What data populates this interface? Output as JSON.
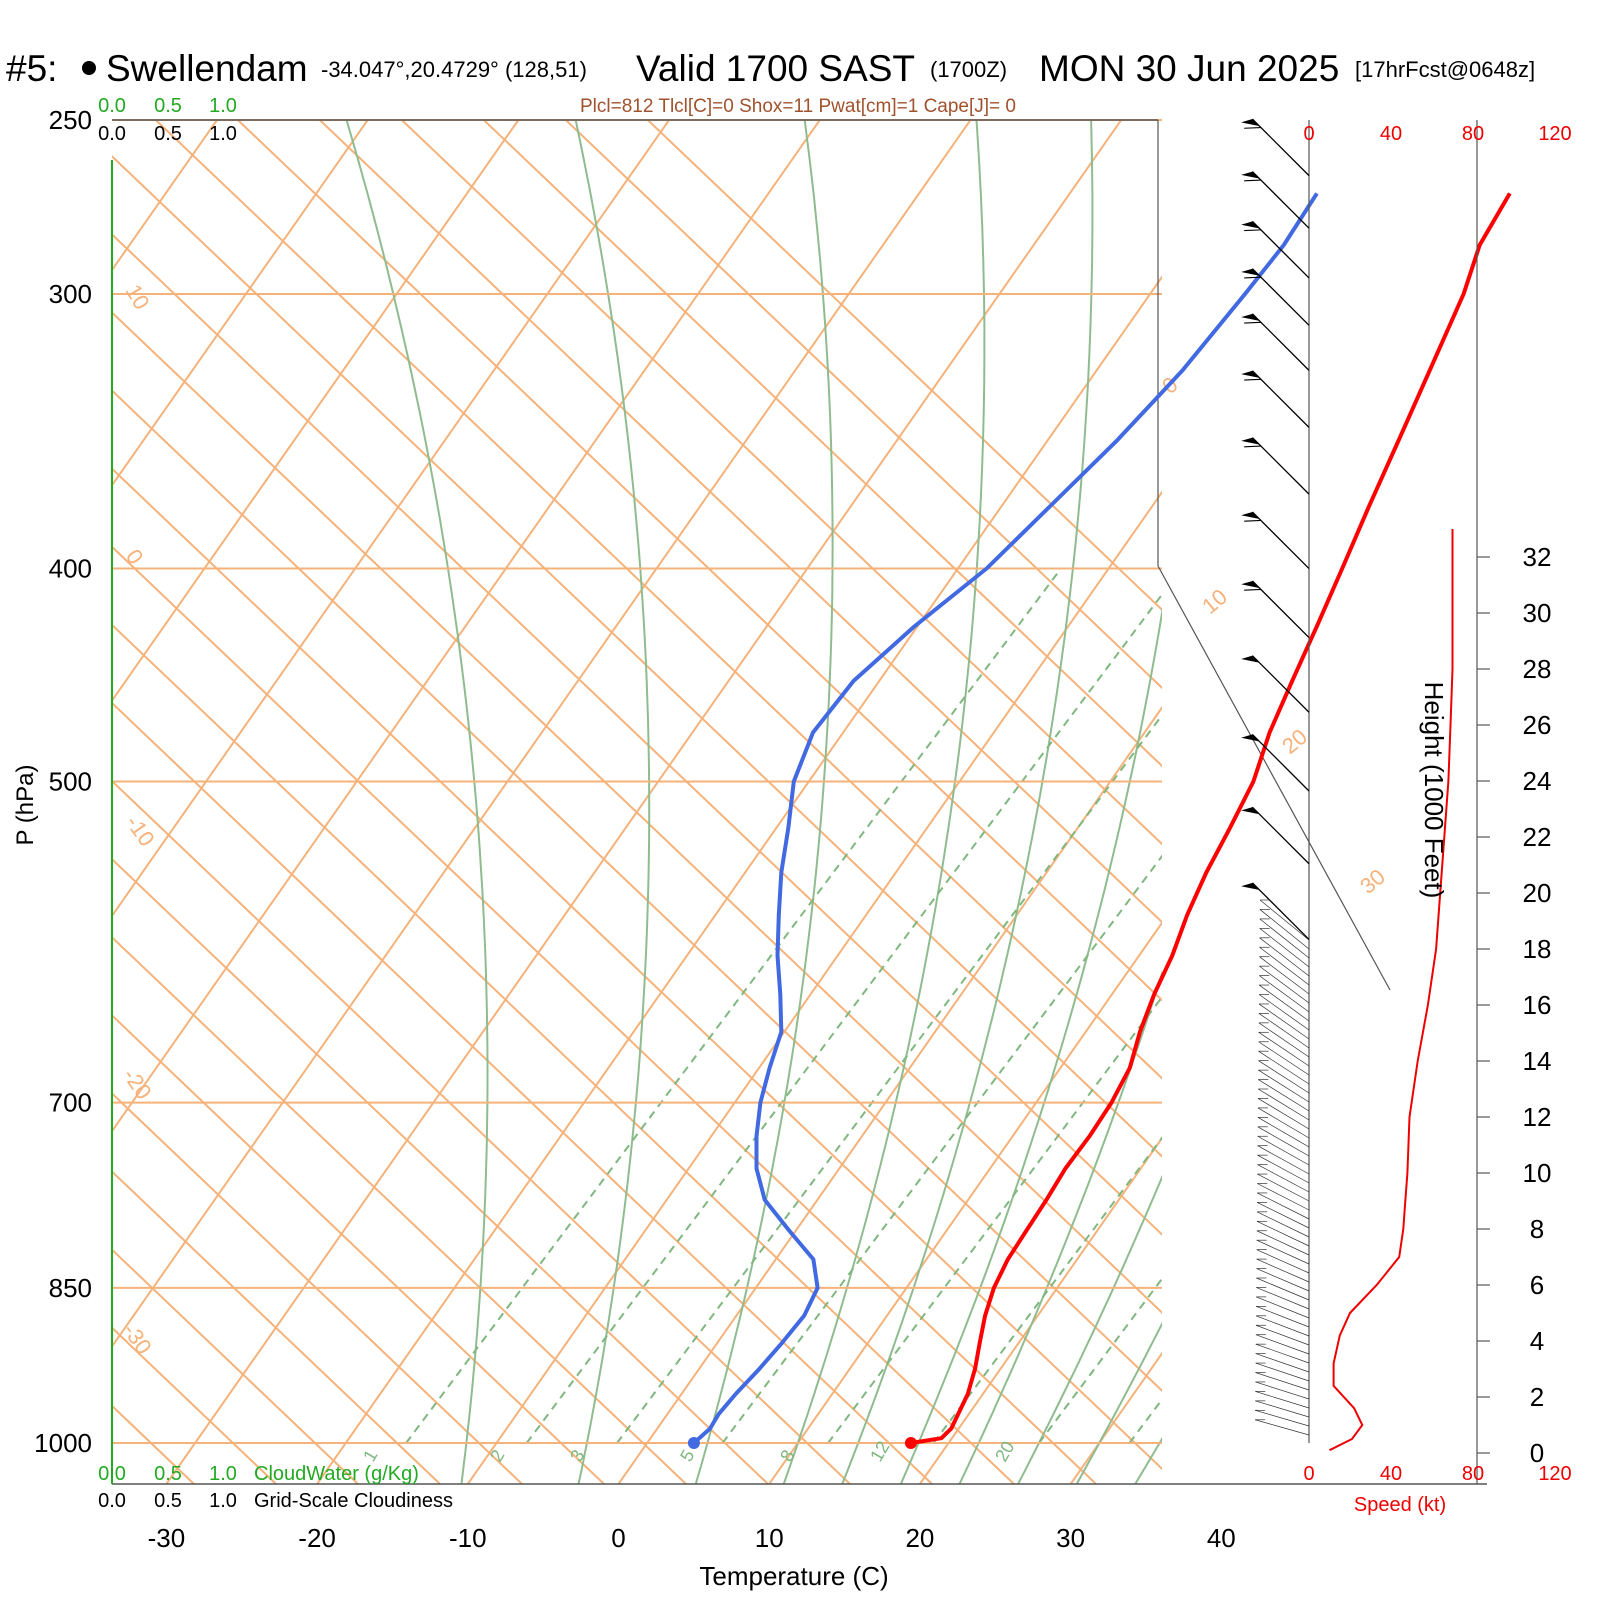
{
  "header": {
    "station_id": "#5:",
    "station_name": "Swellendam",
    "coords": "-34.047°,20.4729° (128,51)",
    "valid_label": "Valid 1700 SAST",
    "zulu": "(1700Z)",
    "date": "MON 30 Jun 2025",
    "forecast": "[17hrFcst@0648z]"
  },
  "params_line": "Plcl=812 Tlcl[C]=0 Shox=11 Pwat[cm]=1 Cape[J]= 0",
  "cloud_scale": {
    "green_ticks": [
      "0.0",
      "0.5",
      "1.0"
    ],
    "black_ticks": [
      "0.0",
      "0.5",
      "1.0"
    ],
    "cloudwater_label": "CloudWater (g/Kg)",
    "cloudiness_label": "Grid-Scale Cloudiness"
  },
  "speed_axis": {
    "ticks": [
      "0",
      "40",
      "80",
      "120"
    ],
    "label": "Speed (kt)"
  },
  "colors": {
    "temperature": "#ff0000",
    "dewpoint": "#4169e1",
    "isotherm": "#f5b27a",
    "adiabat": "#8fbc8f",
    "mixing": "#7fb77f",
    "speed": "#ee0000",
    "cloud_axis": "#22aa22"
  },
  "chart_data": {
    "type": "line",
    "subtype": "skew-t log-p sounding",
    "xlabel": "Temperature (C)",
    "ylabel": "P (hPa)",
    "right_label": "Height (1000 Feet)",
    "pressure_ticks": [
      250,
      300,
      400,
      500,
      700,
      850,
      1000
    ],
    "temperature_ticks": [
      -30,
      -20,
      -10,
      0,
      10,
      20,
      30,
      40
    ],
    "height_ticks": [
      0,
      2,
      4,
      6,
      8,
      10,
      12,
      14,
      16,
      18,
      20,
      22,
      24,
      26,
      28,
      30,
      32
    ],
    "isotherm_labels": [
      "10",
      "0",
      "-10",
      "-20",
      "-30",
      "0",
      "10",
      "20",
      "30"
    ],
    "mixing_ratio_labels": [
      "1",
      "2",
      "3",
      "5",
      "8",
      "12",
      "20"
    ],
    "series": [
      {
        "key": "temperature",
        "points": [
          {
            "p": 1000,
            "t": 17.5
          },
          {
            "p": 995,
            "t": 19.3
          },
          {
            "p": 985,
            "t": 19.5
          },
          {
            "p": 950,
            "t": 19.0
          },
          {
            "p": 925,
            "t": 18.3
          },
          {
            "p": 900,
            "t": 17.4
          },
          {
            "p": 875,
            "t": 16.5
          },
          {
            "p": 850,
            "t": 15.8
          },
          {
            "p": 825,
            "t": 15.4
          },
          {
            "p": 800,
            "t": 15.3
          },
          {
            "p": 775,
            "t": 15.2
          },
          {
            "p": 750,
            "t": 15.0
          },
          {
            "p": 725,
            "t": 15.1
          },
          {
            "p": 700,
            "t": 15.0
          },
          {
            "p": 675,
            "t": 14.6
          },
          {
            "p": 650,
            "t": 13.6
          },
          {
            "p": 625,
            "t": 12.8
          },
          {
            "p": 600,
            "t": 12.2
          },
          {
            "p": 575,
            "t": 11.3
          },
          {
            "p": 550,
            "t": 10.6
          },
          {
            "p": 525,
            "t": 10.1
          },
          {
            "p": 500,
            "t": 9.5
          },
          {
            "p": 475,
            "t": 8.3
          },
          {
            "p": 450,
            "t": 7.4
          },
          {
            "p": 425,
            "t": 6.5
          },
          {
            "p": 400,
            "t": 5.5
          },
          {
            "p": 375,
            "t": 4.4
          },
          {
            "p": 350,
            "t": 3.3
          },
          {
            "p": 325,
            "t": 2.1
          },
          {
            "p": 300,
            "t": 0.8
          },
          {
            "p": 285,
            "t": -0.4
          },
          {
            "p": 270,
            "t": -0.8
          }
        ]
      },
      {
        "key": "dewpoint",
        "points": [
          {
            "p": 1000,
            "t": 3.1
          },
          {
            "p": 985,
            "t": 3.5
          },
          {
            "p": 970,
            "t": 3.4
          },
          {
            "p": 950,
            "t": 3.6
          },
          {
            "p": 925,
            "t": 4.0
          },
          {
            "p": 900,
            "t": 4.3
          },
          {
            "p": 875,
            "t": 4.5
          },
          {
            "p": 850,
            "t": 4.1
          },
          {
            "p": 825,
            "t": 2.5
          },
          {
            "p": 800,
            "t": -0.5
          },
          {
            "p": 775,
            "t": -3.5
          },
          {
            "p": 750,
            "t": -5.5
          },
          {
            "p": 725,
            "t": -7.0
          },
          {
            "p": 700,
            "t": -8.3
          },
          {
            "p": 675,
            "t": -9.3
          },
          {
            "p": 650,
            "t": -10.2
          },
          {
            "p": 625,
            "t": -12.0
          },
          {
            "p": 600,
            "t": -14.0
          },
          {
            "p": 575,
            "t": -15.8
          },
          {
            "p": 550,
            "t": -17.6
          },
          {
            "p": 525,
            "t": -19.2
          },
          {
            "p": 500,
            "t": -21.0
          },
          {
            "p": 475,
            "t": -22.0
          },
          {
            "p": 450,
            "t": -21.7
          },
          {
            "p": 425,
            "t": -20.2
          },
          {
            "p": 400,
            "t": -18.1
          },
          {
            "p": 375,
            "t": -16.8
          },
          {
            "p": 350,
            "t": -15.4
          },
          {
            "p": 325,
            "t": -14.3
          },
          {
            "p": 300,
            "t": -13.7
          },
          {
            "p": 285,
            "t": -13.4
          },
          {
            "p": 270,
            "t": -13.6
          }
        ]
      }
    ],
    "wind_speed_profile": [
      {
        "h": 0.1,
        "kt": 10
      },
      {
        "h": 0.5,
        "kt": 21
      },
      {
        "h": 1.0,
        "kt": 26
      },
      {
        "h": 1.6,
        "kt": 22
      },
      {
        "h": 2.4,
        "kt": 12
      },
      {
        "h": 3.2,
        "kt": 12
      },
      {
        "h": 4.2,
        "kt": 15
      },
      {
        "h": 5.0,
        "kt": 20
      },
      {
        "h": 6.0,
        "kt": 33
      },
      {
        "h": 7.0,
        "kt": 44
      },
      {
        "h": 8.0,
        "kt": 46
      },
      {
        "h": 9.0,
        "kt": 47
      },
      {
        "h": 10.0,
        "kt": 48
      },
      {
        "h": 12.0,
        "kt": 49
      },
      {
        "h": 14.0,
        "kt": 53
      },
      {
        "h": 16.0,
        "kt": 58
      },
      {
        "h": 18.0,
        "kt": 62
      },
      {
        "h": 20.0,
        "kt": 64
      },
      {
        "h": 22.0,
        "kt": 66
      },
      {
        "h": 24.0,
        "kt": 68
      },
      {
        "h": 26.0,
        "kt": 69
      },
      {
        "h": 28.0,
        "kt": 70
      },
      {
        "h": 30.0,
        "kt": 70
      },
      {
        "h": 32.0,
        "kt": 70
      },
      {
        "h": 33.0,
        "kt": 70
      }
    ],
    "wind_barbs": [
      {
        "p": 265,
        "dir": 300,
        "kt": 65
      },
      {
        "p": 280,
        "dir": 300,
        "kt": 65
      },
      {
        "p": 295,
        "dir": 300,
        "kt": 65
      },
      {
        "p": 310,
        "dir": 300,
        "kt": 65
      },
      {
        "p": 325,
        "dir": 300,
        "kt": 65
      },
      {
        "p": 345,
        "dir": 300,
        "kt": 60
      },
      {
        "p": 370,
        "dir": 300,
        "kt": 60
      },
      {
        "p": 400,
        "dir": 300,
        "kt": 60
      },
      {
        "p": 430,
        "dir": 300,
        "kt": 60
      },
      {
        "p": 465,
        "dir": 300,
        "kt": 55
      },
      {
        "p": 505,
        "dir": 300,
        "kt": 55
      },
      {
        "p": 545,
        "dir": 300,
        "kt": 55
      },
      {
        "p": 590,
        "dir": 300,
        "kt": 50
      }
    ]
  }
}
